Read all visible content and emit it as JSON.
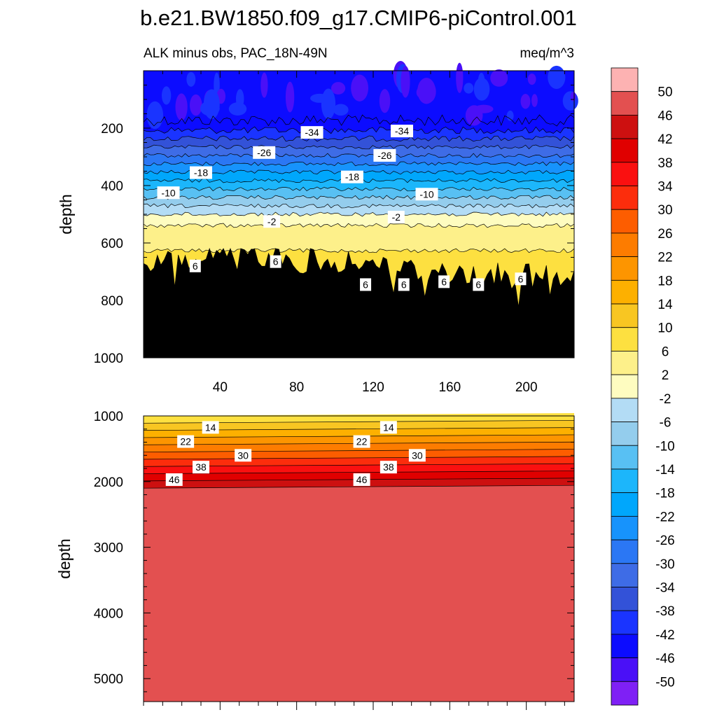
{
  "chart_data": [
    {
      "type": "heatmap",
      "panel": "upper",
      "title": "b.e21.BW1850.f09_g17.CMIP6-piControl.001",
      "subtitle_left": "ALK minus obs, PAC_18N-49N",
      "subtitle_right": "meq/m^3",
      "xlabel": "",
      "ylabel": "depth",
      "xlim": [
        0,
        225
      ],
      "ylim": [
        0,
        1000
      ],
      "y_inverted": true,
      "x_ticks": [
        "40",
        "80",
        "120",
        "160",
        "200"
      ],
      "y_ticks": [
        "200",
        "400",
        "600",
        "800",
        "1000"
      ],
      "contour_labels": [
        {
          "text": "-34",
          "x": 88,
          "depth": 215
        },
        {
          "text": "-34",
          "x": 135,
          "depth": 210
        },
        {
          "text": "-26",
          "x": 63,
          "depth": 285
        },
        {
          "text": "-26",
          "x": 126,
          "depth": 295
        },
        {
          "text": "-18",
          "x": 30,
          "depth": 355
        },
        {
          "text": "-18",
          "x": 109,
          "depth": 370
        },
        {
          "text": "-10",
          "x": 13,
          "depth": 425
        },
        {
          "text": "-10",
          "x": 148,
          "depth": 430
        },
        {
          "text": "-2",
          "x": 67,
          "depth": 525
        },
        {
          "text": "-2",
          "x": 132,
          "depth": 510
        },
        {
          "text": "6",
          "x": 27,
          "depth": 680
        },
        {
          "text": "6",
          "x": 69,
          "depth": 665
        },
        {
          "text": "6",
          "x": 116,
          "depth": 745
        },
        {
          "text": "6",
          "x": 136,
          "depth": 745
        },
        {
          "text": "6",
          "x": 157,
          "depth": 735
        },
        {
          "text": "6",
          "x": 175,
          "depth": 745
        },
        {
          "text": "6",
          "x": 197,
          "depth": 725
        }
      ]
    },
    {
      "type": "heatmap",
      "panel": "lower",
      "xlabel": "",
      "ylabel": "depth",
      "xlim": [
        0,
        225
      ],
      "ylim": [
        1000,
        5350
      ],
      "y_inverted": true,
      "y_ticks": [
        "1000",
        "2000",
        "3000",
        "4000",
        "5000"
      ],
      "contour_labels": [
        {
          "text": "14",
          "x": 35,
          "depth": 1175
        },
        {
          "text": "14",
          "x": 128,
          "depth": 1175
        },
        {
          "text": "22",
          "x": 22,
          "depth": 1390
        },
        {
          "text": "22",
          "x": 114,
          "depth": 1390
        },
        {
          "text": "30",
          "x": 52,
          "depth": 1600
        },
        {
          "text": "30",
          "x": 143,
          "depth": 1600
        },
        {
          "text": "38",
          "x": 30,
          "depth": 1780
        },
        {
          "text": "38",
          "x": 128,
          "depth": 1780
        },
        {
          "text": "46",
          "x": 16,
          "depth": 1970
        },
        {
          "text": "46",
          "x": 114,
          "depth": 1970
        }
      ]
    }
  ],
  "colorbar": {
    "labels": [
      "50",
      "46",
      "42",
      "38",
      "34",
      "30",
      "26",
      "22",
      "18",
      "14",
      "10",
      "6",
      "2",
      "-2",
      "-6",
      "-10",
      "-14",
      "-18",
      "-22",
      "-26",
      "-30",
      "-34",
      "-38",
      "-42",
      "-46",
      "-50"
    ],
    "colors": [
      "#fdb2b2",
      "#e35050",
      "#cd1010",
      "#e00000",
      "#fa1010",
      "#fc2d0c",
      "#fd5d00",
      "#fd7c00",
      "#fd9500",
      "#fdb000",
      "#f8c622",
      "#fde040",
      "#fdf08a",
      "#fefcc0",
      "#b3dcf5",
      "#94cded",
      "#58c0f3",
      "#1cb6fb",
      "#00a7fc",
      "#1793fc",
      "#2b77f4",
      "#3e6ce6",
      "#3352d8",
      "#1a34ff",
      "#0c0cff",
      "#4a10f7",
      "#7f20f5"
    ]
  }
}
